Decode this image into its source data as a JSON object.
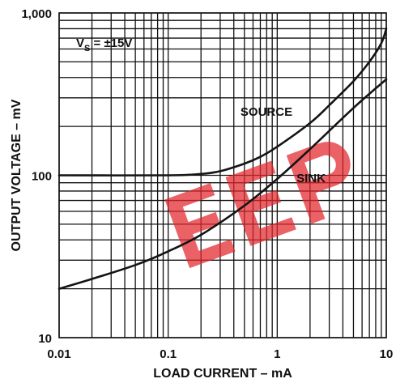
{
  "chart_data": {
    "type": "line",
    "title": "",
    "xlabel": "LOAD CURRENT – mA",
    "ylabel": "OUTPUT VOLTAGE – mV",
    "x_scale": "log",
    "y_scale": "log",
    "xlim": [
      0.01,
      10
    ],
    "ylim": [
      10,
      1000
    ],
    "x_ticks": [
      0.01,
      0.1,
      1,
      10
    ],
    "x_tick_labels": [
      "0.01",
      "0.1",
      "1",
      "10"
    ],
    "y_ticks": [
      10,
      100,
      1000
    ],
    "y_tick_labels": [
      "10",
      "100",
      "1,000"
    ],
    "grid": true,
    "annotation": {
      "main": "V",
      "sub": "S",
      "rest": " = ±15V"
    },
    "series": [
      {
        "name": "SOURCE",
        "x": [
          0.01,
          0.1,
          0.2,
          0.3,
          0.5,
          0.7,
          1,
          2,
          3,
          5,
          7,
          9,
          10
        ],
        "y": [
          100,
          100,
          102,
          106,
          118,
          130,
          150,
          210,
          270,
          380,
          500,
          650,
          800
        ]
      },
      {
        "name": "SINK",
        "x": [
          0.01,
          0.02,
          0.05,
          0.1,
          0.2,
          0.5,
          1,
          2,
          5,
          10
        ],
        "y": [
          20,
          23,
          28,
          34,
          43,
          65,
          95,
          145,
          260,
          390
        ]
      }
    ],
    "colors": {
      "line": "#141414",
      "grid": "#111111",
      "watermark": "#e2262c"
    }
  }
}
